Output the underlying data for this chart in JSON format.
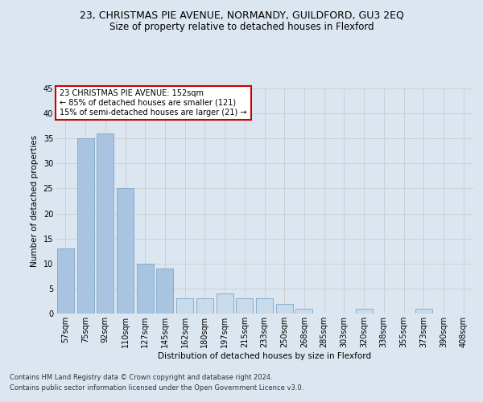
{
  "title": "23, CHRISTMAS PIE AVENUE, NORMANDY, GUILDFORD, GU3 2EQ",
  "subtitle": "Size of property relative to detached houses in Flexford",
  "xlabel": "Distribution of detached houses by size in Flexford",
  "ylabel": "Number of detached properties",
  "categories": [
    "57sqm",
    "75sqm",
    "92sqm",
    "110sqm",
    "127sqm",
    "145sqm",
    "162sqm",
    "180sqm",
    "197sqm",
    "215sqm",
    "233sqm",
    "250sqm",
    "268sqm",
    "285sqm",
    "303sqm",
    "320sqm",
    "338sqm",
    "355sqm",
    "373sqm",
    "390sqm",
    "408sqm"
  ],
  "values": [
    13,
    35,
    36,
    25,
    10,
    9,
    3,
    3,
    4,
    3,
    3,
    2,
    1,
    0,
    0,
    1,
    0,
    0,
    1,
    0,
    0
  ],
  "bar_color_normal": "#c9daea",
  "bar_color_highlight": "#a8c4e0",
  "bar_edge_color": "#7ba7c9",
  "highlight_index": 5,
  "annotation_text": "23 CHRISTMAS PIE AVENUE: 152sqm\n← 85% of detached houses are smaller (121)\n15% of semi-detached houses are larger (21) →",
  "annotation_box_color": "#ffffff",
  "annotation_box_edge": "#cc0000",
  "ylim": [
    0,
    45
  ],
  "yticks": [
    0,
    5,
    10,
    15,
    20,
    25,
    30,
    35,
    40,
    45
  ],
  "grid_color": "#cccccc",
  "background_color": "#dce6f0",
  "footer_line1": "Contains HM Land Registry data © Crown copyright and database right 2024.",
  "footer_line2": "Contains public sector information licensed under the Open Government Licence v3.0.",
  "title_fontsize": 9,
  "subtitle_fontsize": 8.5,
  "axis_label_fontsize": 7.5,
  "tick_fontsize": 7,
  "footer_fontsize": 6,
  "annotation_fontsize": 7
}
